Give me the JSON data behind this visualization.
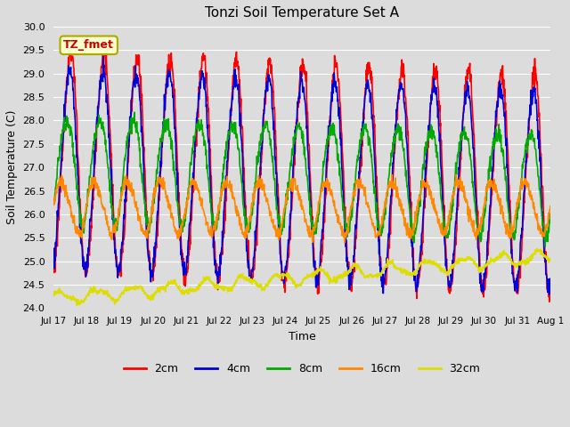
{
  "title": "Tonzi Soil Temperature Set A",
  "xlabel": "Time",
  "ylabel": "Soil Temperature (C)",
  "annotation_text": "TZ_fmet",
  "annotation_fc": "#ffffcc",
  "annotation_ec": "#aaaa00",
  "annotation_tc": "#cc0000",
  "ylim": [
    24.0,
    30.0
  ],
  "yticks": [
    24.0,
    24.5,
    25.0,
    25.5,
    26.0,
    26.5,
    27.0,
    27.5,
    28.0,
    28.5,
    29.0,
    29.5,
    30.0
  ],
  "bg_color": "#dcdcdc",
  "plot_bg": "#dcdcdc",
  "grid_color": "#ffffff",
  "line_colors": {
    "2cm": "#ff0000",
    "4cm": "#0000dd",
    "8cm": "#00aa00",
    "16cm": "#ff8800",
    "32cm": "#dddd00"
  },
  "line_width": 1.2,
  "legend_labels": [
    "2cm",
    "4cm",
    "8cm",
    "16cm",
    "32cm"
  ],
  "xtick_labels": [
    "Jul 17",
    "Jul 18",
    "Jul 19",
    "Jul 20",
    "Jul 21",
    "Jul 22",
    "Jul 23",
    "Jul 24",
    "Jul 25",
    "Jul 26",
    "Jul 27",
    "Jul 28",
    "Jul 29",
    "Jul 30",
    "Jul 31",
    "Aug 1"
  ]
}
